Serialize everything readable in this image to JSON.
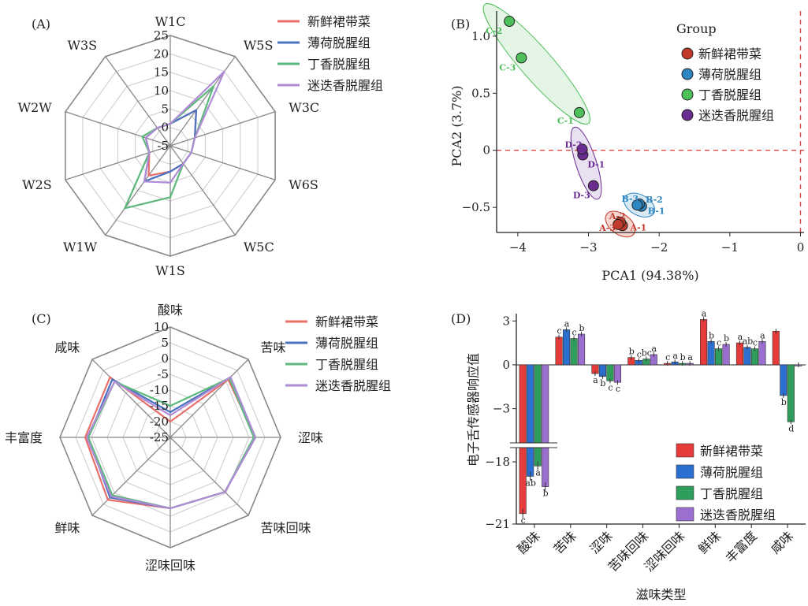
{
  "chart_data": [
    {
      "panel": "(A)",
      "type": "radar",
      "axes": [
        "W1C",
        "W5S",
        "W3C",
        "W6S",
        "W5C",
        "W1S",
        "W1W",
        "W2S",
        "W2W",
        "W3S"
      ],
      "ticks": [
        "25",
        "20",
        "15",
        "10",
        "5",
        "0",
        "-5"
      ],
      "rlim": [
        -5,
        25
      ],
      "legend": "top-right",
      "series": [
        {
          "name": "新鲜裙带菜",
          "color": "#e8706a",
          "values": [
            1,
            7,
            2,
            1,
            1,
            2,
            5,
            1,
            2,
            1
          ]
        },
        {
          "name": "薄荷脱腥组",
          "color": "#4a72c0",
          "values": [
            1,
            7,
            2,
            1,
            1,
            2,
            7,
            1,
            2,
            1
          ]
        },
        {
          "name": "丁香脱腥组",
          "color": "#5cb87c",
          "values": [
            1,
            15,
            2,
            1,
            1,
            9,
            16,
            1,
            3,
            1
          ]
        },
        {
          "name": "迷迭香脱腥组",
          "color": "#b08cd6",
          "values": [
            1,
            20,
            2,
            1,
            1,
            5,
            7,
            1,
            2,
            1
          ]
        }
      ]
    },
    {
      "panel": "(B)",
      "type": "scatter",
      "xlabel": "PCA1 (94.38%)",
      "ylabel": "PCA2 (3.7%)",
      "xlim": [
        -4.3,
        0.05
      ],
      "ylim": [
        -0.72,
        1.22
      ],
      "xticks": [
        "−4",
        "−3",
        "−2",
        "−1",
        "0"
      ],
      "yticks": [
        "−0.5",
        "0",
        "0.5",
        "1.0"
      ],
      "legend_title": "Group",
      "legend": "top-right",
      "groups": [
        {
          "name": "新鲜裙带菜",
          "fill": "#c0392b",
          "ellipse": "#f3c7c0",
          "stroke": "#c0392b",
          "points": [
            {
              "label": "A-1",
              "x": -2.52,
              "y": -0.66
            },
            {
              "label": "A-2",
              "x": -2.55,
              "y": -0.63
            },
            {
              "label": "A-3",
              "x": -2.58,
              "y": -0.65
            }
          ]
        },
        {
          "name": "薄荷脱腥组",
          "fill": "#2e86c1",
          "ellipse": "#cde3f2",
          "stroke": "#2e86c1",
          "points": [
            {
              "label": "B-1",
              "x": -2.25,
              "y": -0.49
            },
            {
              "label": "B-2",
              "x": -2.28,
              "y": -0.47
            },
            {
              "label": "B-3",
              "x": -2.31,
              "y": -0.48
            }
          ]
        },
        {
          "name": "丁香脱腥组",
          "fill": "#4fbf5c",
          "ellipse": "#dcf2dc",
          "stroke": "#4fbf5c",
          "points": [
            {
              "label": "C-1",
              "x": -3.13,
              "y": 0.33
            },
            {
              "label": "C-2",
              "x": -4.12,
              "y": 1.13
            },
            {
              "label": "C-3",
              "x": -3.95,
              "y": 0.81
            }
          ]
        },
        {
          "name": "迷迭香脱腥组",
          "fill": "#6a2c91",
          "ellipse": "#e2d6ee",
          "stroke": "#6a2c91",
          "points": [
            {
              "label": "D-1",
              "x": -3.08,
              "y": -0.04
            },
            {
              "label": "D-2",
              "x": -3.09,
              "y": 0.01
            },
            {
              "label": "D-3",
              "x": -2.93,
              "y": -0.31
            }
          ]
        }
      ]
    },
    {
      "panel": "(C)",
      "type": "radar",
      "axes": [
        "酸味",
        "苦味",
        "涩味",
        "苦味回味",
        "涩味回味",
        "鲜味",
        "丰富度",
        "咸味"
      ],
      "ticks": [
        "10",
        "5",
        "0",
        "-5",
        "-10",
        "-15",
        "-20",
        "-25"
      ],
      "rlim": [
        -25,
        10
      ],
      "legend": "top-right",
      "series": [
        {
          "name": "新鲜裙带菜",
          "color": "#e8706a",
          "values": [
            -20,
            1,
            2,
            -0.5,
            -2.5,
            3,
            2,
            2
          ]
        },
        {
          "name": "薄荷脱腥组",
          "color": "#4a72c0",
          "values": [
            -17,
            2,
            2,
            -0.5,
            -2.5,
            2,
            1,
            1
          ]
        },
        {
          "name": "丁香脱腥组",
          "color": "#5cb87c",
          "values": [
            -15,
            1.5,
            1.5,
            -0.5,
            -2.5,
            1,
            1,
            0
          ]
        },
        {
          "name": "迷迭香脱腥组",
          "color": "#b08cd6",
          "values": [
            -18,
            2,
            2,
            -0.5,
            -2.5,
            1.5,
            1.5,
            0
          ]
        }
      ]
    },
    {
      "panel": "(D)",
      "type": "bar",
      "xlabel": "滋味类型",
      "ylabel": "电子舌传感器响应值",
      "categories": [
        "酸味",
        "苦味",
        "涩味",
        "苦味回味",
        "涩味回味",
        "鲜味",
        "丰富度",
        "咸味"
      ],
      "yticks": [
        "3",
        "0",
        "−3",
        "−18",
        "−21"
      ],
      "ylim_upper": [
        -5.5,
        3.5
      ],
      "ylim_lower": [
        -21,
        -17.2
      ],
      "legend": "right",
      "series": [
        {
          "name": "新鲜裙带菜",
          "color": "#e63b3b",
          "values": [
            -20.5,
            1.9,
            -0.6,
            0.5,
            0.1,
            3.1,
            1.5,
            2.3
          ],
          "letters": [
            "c",
            "c",
            "a",
            "b",
            "c",
            "a",
            "a",
            ""
          ]
        },
        {
          "name": "薄荷脱腥组",
          "color": "#2b6fd0",
          "values": [
            -18.7,
            2.4,
            -0.8,
            0.3,
            0.2,
            1.6,
            1.2,
            -2.1
          ],
          "letters": [
            "ab",
            "a",
            "b",
            "c",
            "a",
            "b",
            "ab",
            "b"
          ]
        },
        {
          "name": "丁香脱腥组",
          "color": "#2f9e5c",
          "values": [
            -18.2,
            1.8,
            -1.1,
            0.4,
            0.1,
            1.1,
            1.1,
            -3.9
          ],
          "letters": [
            "a",
            "c",
            "c",
            "bc",
            "b",
            "c",
            "c",
            "d"
          ]
        },
        {
          "name": "迷迭香脱腥组",
          "color": "#9a6fd0",
          "values": [
            -19.2,
            2.1,
            -1.2,
            0.7,
            0.1,
            1.4,
            1.6,
            0
          ],
          "letters": [
            "b",
            "b",
            "c",
            "a",
            "a",
            "b",
            "a",
            ""
          ]
        }
      ]
    }
  ]
}
